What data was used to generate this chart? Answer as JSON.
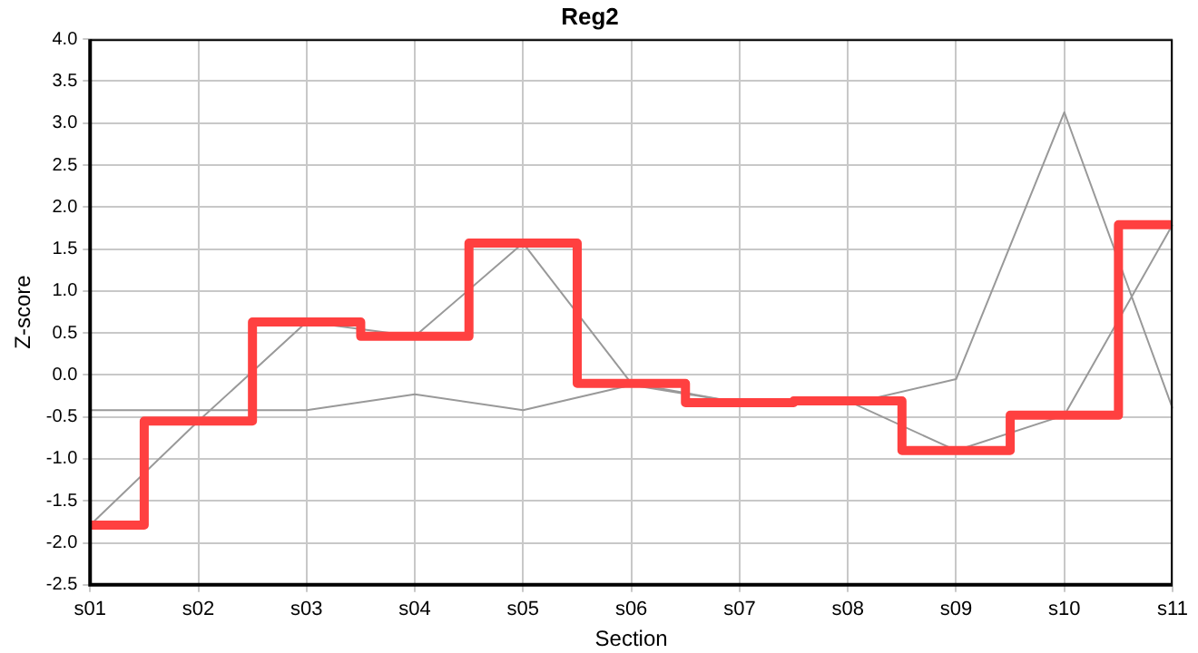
{
  "chart_data": {
    "type": "line",
    "title": "Reg2",
    "xlabel": "Section",
    "ylabel": "Z-score",
    "categories": [
      "s01",
      "s02",
      "s03",
      "s04",
      "s05",
      "s06",
      "s07",
      "s08",
      "s09",
      "s10",
      "s11"
    ],
    "series": [
      {
        "type": "line",
        "color": "#999999",
        "values": [
          -0.42,
          -0.42,
          -0.42,
          -0.23,
          -0.42,
          -0.12,
          -0.33,
          -0.35,
          -0.05,
          3.13,
          -0.4
        ]
      },
      {
        "type": "line",
        "color": "#999999",
        "values": [
          -1.79,
          -0.55,
          0.63,
          0.46,
          1.57,
          -0.1,
          -0.33,
          -0.31,
          -0.9,
          -0.48,
          1.79
        ]
      },
      {
        "type": "step",
        "color": "#ff4040",
        "values": [
          -1.79,
          -0.55,
          0.63,
          0.46,
          1.57,
          -0.1,
          -0.33,
          -0.31,
          -0.9,
          -0.48,
          1.79
        ]
      }
    ],
    "ylim": [
      -2.5,
      4.0
    ],
    "yticks": [
      {
        "value": -2.5,
        "label": "-2.5"
      },
      {
        "value": -2,
        "label": "-2.0"
      },
      {
        "value": -1.5,
        "label": "-1.5"
      },
      {
        "value": -1,
        "label": "-1.0"
      },
      {
        "value": -0.5,
        "label": "-0.5"
      },
      {
        "value": 0,
        "label": "0.0"
      },
      {
        "value": 0.5,
        "label": "0.5"
      },
      {
        "value": 1,
        "label": "1.0"
      },
      {
        "value": 1.5,
        "label": "1.5"
      },
      {
        "value": 2,
        "label": "2.0"
      },
      {
        "value": 2.5,
        "label": "2.5"
      },
      {
        "value": 3,
        "label": "3.0"
      },
      {
        "value": 3.5,
        "label": "3.5"
      },
      {
        "value": 4,
        "label": "4.0"
      }
    ],
    "grid": true,
    "legend": false,
    "marker": "none"
  }
}
